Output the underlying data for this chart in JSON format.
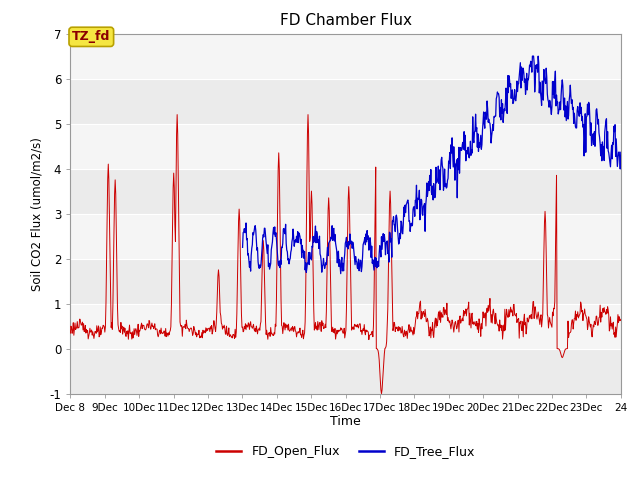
{
  "title": "FD Chamber Flux",
  "xlabel": "Time",
  "ylabel": "Soil CO2 Flux (umol/m2/s)",
  "ylim": [
    -1.0,
    7.0
  ],
  "yticks": [
    -1.0,
    0.0,
    1.0,
    2.0,
    3.0,
    4.0,
    5.0,
    6.0,
    7.0
  ],
  "annotation_text": "TZ_fd",
  "annotation_bbox_fc": "#f5e642",
  "annotation_bbox_ec": "#b8a000",
  "open_flux_color": "#cc0000",
  "tree_flux_color": "#0000cc",
  "bg_color": "#ebebeb",
  "bg_color2": "#f5f5f5",
  "legend_labels": [
    "FD_Open_Flux",
    "FD_Tree_Flux"
  ],
  "grid_color": "white",
  "n_points": 960,
  "x_start": 8.0,
  "x_end": 24.0,
  "xtick_days": [
    8,
    9,
    10,
    11,
    12,
    13,
    14,
    15,
    16,
    17,
    18,
    19,
    20,
    21,
    22,
    23,
    24
  ]
}
